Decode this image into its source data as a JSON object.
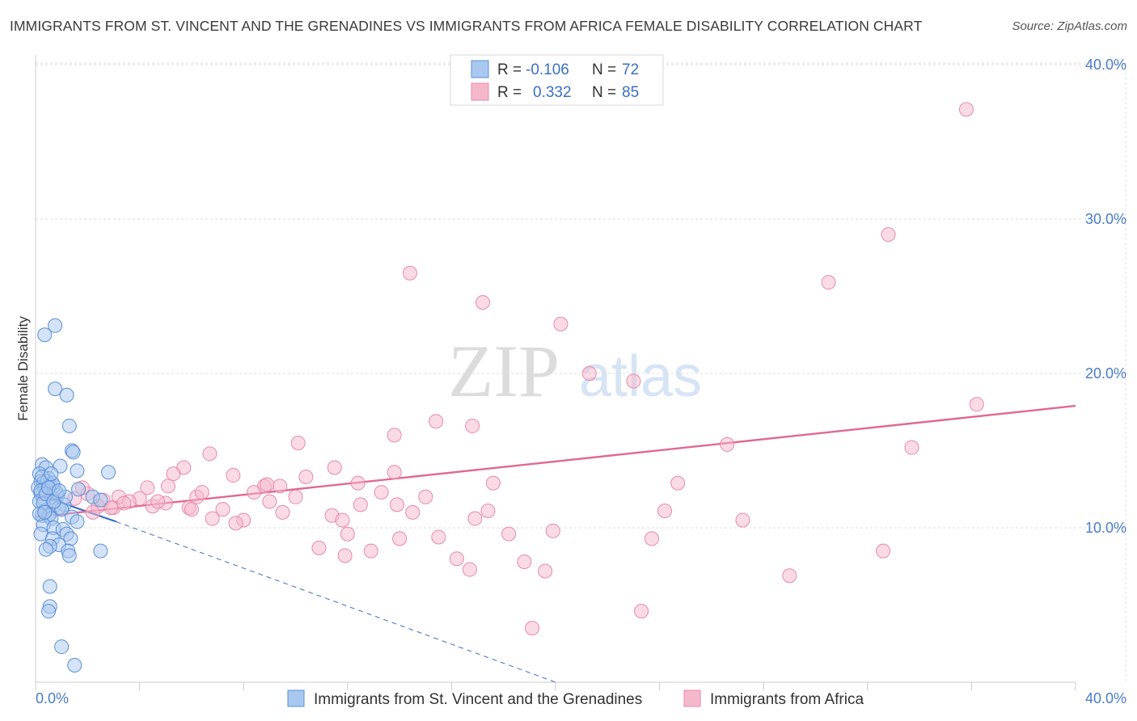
{
  "title": "IMMIGRANTS FROM ST. VINCENT AND THE GRENADINES VS IMMIGRANTS FROM AFRICA FEMALE DISABILITY CORRELATION CHART",
  "source": "Source: ZipAtlas.com",
  "watermark": {
    "zip": "ZIP",
    "atlas": "atlas"
  },
  "colors": {
    "blue_fill": "#a9c8f0",
    "blue_stroke": "#5b8fd6",
    "blue_line": "#3a6fc4",
    "pink_fill": "#f5b8cb",
    "pink_stroke": "#e889a8",
    "pink_line": "#e06892",
    "grid": "#dddddd",
    "tick_label": "#4a7cc9"
  },
  "legend": {
    "rows": [
      {
        "r_label": "R =",
        "r_value": "-0.106",
        "n_label": "N =",
        "n_value": "72"
      },
      {
        "r_label": "R =",
        "r_value": "0.332",
        "n_label": "N =",
        "n_value": "85"
      }
    ]
  },
  "chart_data": {
    "type": "scatter",
    "title": "IMMIGRANTS FROM ST. VINCENT AND THE GRENADINES VS IMMIGRANTS FROM AFRICA FEMALE DISABILITY CORRELATION CHART",
    "xlabel": "",
    "ylabel": "Female Disability",
    "xlim": [
      0,
      40
    ],
    "ylim": [
      0,
      41.5
    ],
    "x_tick_labels": [
      "0.0%",
      "40.0%"
    ],
    "y_ticks": [
      10,
      20,
      30,
      40
    ],
    "y_tick_labels": [
      "10.0%",
      "20.0%",
      "30.0%",
      "40.0%"
    ],
    "grid": true,
    "legend_position": "top-center",
    "series": [
      {
        "name": "Immigrants from St. Vincent and the Grenadines",
        "R": -0.106,
        "N": 72,
        "trend": {
          "x0": 0,
          "y0": 12.2,
          "x1": 3.1,
          "y1": 10.4,
          "dashed_to_x": 20,
          "dashed_to_y": 0
        },
        "points": [
          [
            0.35,
            22.5
          ],
          [
            0.75,
            23.1
          ],
          [
            0.75,
            19.0
          ],
          [
            1.2,
            18.6
          ],
          [
            1.3,
            16.6
          ],
          [
            1.4,
            15.0
          ],
          [
            1.45,
            14.9
          ],
          [
            0.25,
            14.1
          ],
          [
            0.4,
            13.9
          ],
          [
            0.95,
            14.0
          ],
          [
            1.6,
            13.7
          ],
          [
            2.8,
            13.6
          ],
          [
            0.15,
            13.5
          ],
          [
            0.5,
            13.2
          ],
          [
            0.2,
            13.0
          ],
          [
            0.3,
            12.9
          ],
          [
            0.55,
            12.8
          ],
          [
            0.7,
            12.7
          ],
          [
            0.1,
            12.6
          ],
          [
            0.35,
            12.5
          ],
          [
            1.65,
            12.5
          ],
          [
            0.45,
            12.3
          ],
          [
            0.2,
            12.2
          ],
          [
            0.85,
            12.1
          ],
          [
            0.6,
            12.0
          ],
          [
            0.3,
            11.9
          ],
          [
            2.2,
            12.0
          ],
          [
            2.5,
            11.8
          ],
          [
            0.15,
            11.7
          ],
          [
            1.1,
            11.5
          ],
          [
            0.7,
            11.4
          ],
          [
            0.9,
            11.3
          ],
          [
            0.35,
            11.1
          ],
          [
            0.55,
            10.9
          ],
          [
            0.25,
            10.8
          ],
          [
            0.5,
            10.8
          ],
          [
            0.6,
            10.6
          ],
          [
            1.4,
            10.7
          ],
          [
            1.6,
            10.4
          ],
          [
            0.3,
            10.2
          ],
          [
            0.7,
            10.0
          ],
          [
            1.05,
            9.9
          ],
          [
            1.2,
            9.6
          ],
          [
            0.2,
            9.6
          ],
          [
            0.65,
            9.3
          ],
          [
            1.35,
            9.3
          ],
          [
            0.9,
            8.9
          ],
          [
            0.55,
            8.8
          ],
          [
            0.4,
            8.6
          ],
          [
            1.25,
            8.5
          ],
          [
            2.5,
            8.5
          ],
          [
            1.3,
            8.2
          ],
          [
            0.55,
            6.2
          ],
          [
            0.55,
            4.9
          ],
          [
            0.5,
            4.6
          ],
          [
            1.0,
            2.3
          ],
          [
            1.5,
            1.1
          ],
          [
            0.2,
            12.4
          ],
          [
            0.45,
            13.0
          ],
          [
            0.8,
            12.3
          ],
          [
            0.3,
            11.6
          ],
          [
            0.65,
            12.9
          ],
          [
            1.0,
            11.2
          ],
          [
            0.15,
            10.9
          ],
          [
            0.4,
            12.2
          ],
          [
            0.25,
            13.3
          ],
          [
            0.7,
            11.7
          ],
          [
            1.15,
            12.0
          ],
          [
            0.5,
            12.6
          ],
          [
            0.35,
            11.0
          ],
          [
            0.9,
            12.4
          ],
          [
            0.6,
            13.5
          ]
        ]
      },
      {
        "name": "Immigrants from Africa",
        "R": 0.332,
        "N": 85,
        "trend": {
          "x0": 0,
          "y0": 10.7,
          "x1": 40,
          "y1": 17.9
        },
        "points": [
          [
            35.8,
            37.1
          ],
          [
            32.8,
            29.0
          ],
          [
            30.5,
            25.9
          ],
          [
            14.4,
            26.5
          ],
          [
            17.2,
            24.6
          ],
          [
            20.2,
            23.2
          ],
          [
            21.3,
            20.0
          ],
          [
            23.0,
            19.5
          ],
          [
            36.2,
            18.0
          ],
          [
            15.4,
            16.9
          ],
          [
            16.8,
            16.6
          ],
          [
            13.8,
            16.0
          ],
          [
            10.1,
            15.5
          ],
          [
            26.6,
            15.4
          ],
          [
            33.7,
            15.2
          ],
          [
            6.7,
            14.8
          ],
          [
            5.7,
            13.9
          ],
          [
            11.5,
            13.9
          ],
          [
            5.3,
            13.5
          ],
          [
            7.6,
            13.4
          ],
          [
            10.4,
            13.3
          ],
          [
            13.8,
            13.6
          ],
          [
            4.3,
            12.6
          ],
          [
            5.1,
            12.7
          ],
          [
            8.8,
            12.7
          ],
          [
            9.4,
            12.7
          ],
          [
            12.4,
            12.9
          ],
          [
            17.6,
            12.9
          ],
          [
            24.7,
            12.9
          ],
          [
            8.4,
            12.3
          ],
          [
            13.3,
            12.3
          ],
          [
            2.0,
            12.2
          ],
          [
            3.2,
            12.0
          ],
          [
            6.2,
            12.0
          ],
          [
            15.0,
            12.0
          ],
          [
            4.0,
            11.9
          ],
          [
            2.6,
            11.8
          ],
          [
            3.6,
            11.7
          ],
          [
            5.0,
            11.6
          ],
          [
            9.0,
            11.7
          ],
          [
            10.0,
            12.0
          ],
          [
            12.5,
            11.5
          ],
          [
            13.9,
            11.5
          ],
          [
            2.4,
            11.4
          ],
          [
            3.0,
            11.3
          ],
          [
            4.5,
            11.4
          ],
          [
            5.9,
            11.3
          ],
          [
            6.0,
            11.2
          ],
          [
            7.2,
            11.2
          ],
          [
            9.5,
            11.0
          ],
          [
            11.4,
            10.8
          ],
          [
            14.5,
            11.0
          ],
          [
            17.4,
            11.1
          ],
          [
            24.2,
            11.1
          ],
          [
            6.8,
            10.6
          ],
          [
            8.0,
            10.5
          ],
          [
            7.7,
            10.3
          ],
          [
            11.8,
            10.5
          ],
          [
            16.9,
            10.6
          ],
          [
            27.2,
            10.5
          ],
          [
            12.0,
            9.6
          ],
          [
            15.5,
            9.4
          ],
          [
            18.2,
            9.6
          ],
          [
            19.9,
            9.8
          ],
          [
            23.7,
            9.3
          ],
          [
            14.0,
            9.3
          ],
          [
            10.9,
            8.7
          ],
          [
            12.9,
            8.5
          ],
          [
            11.9,
            8.2
          ],
          [
            32.6,
            8.5
          ],
          [
            16.2,
            8.0
          ],
          [
            18.8,
            7.8
          ],
          [
            19.6,
            7.2
          ],
          [
            16.7,
            7.3
          ],
          [
            29.0,
            6.9
          ],
          [
            23.3,
            4.6
          ],
          [
            19.1,
            3.5
          ],
          [
            1.8,
            12.6
          ],
          [
            1.5,
            11.9
          ],
          [
            2.2,
            11.0
          ],
          [
            3.4,
            11.6
          ],
          [
            6.4,
            12.3
          ],
          [
            8.9,
            12.8
          ],
          [
            4.7,
            11.7
          ],
          [
            2.9,
            11.3
          ]
        ]
      }
    ]
  }
}
